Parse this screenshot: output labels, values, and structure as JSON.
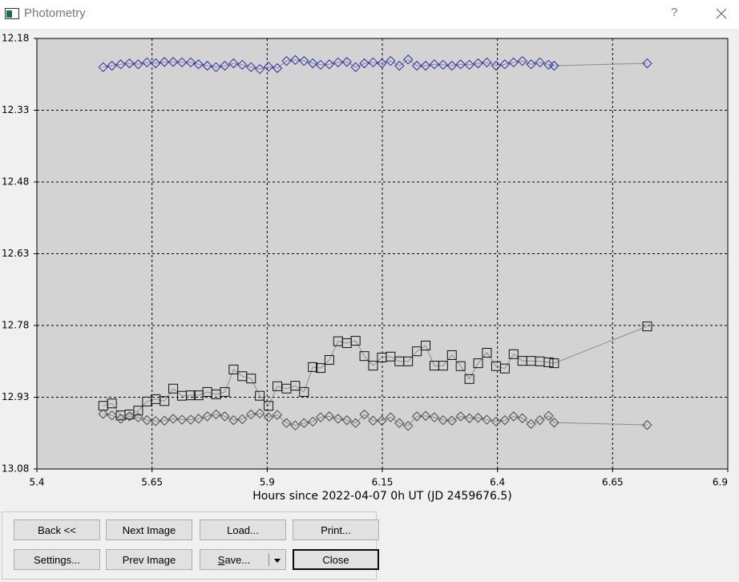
{
  "window": {
    "title": "Photometry",
    "help": "?"
  },
  "buttons": [
    [
      "Back <<",
      "Next Image",
      "Load...",
      "Print..."
    ],
    [
      "Settings...",
      "Prev Image",
      "Save...",
      "Close"
    ]
  ],
  "chart_data": {
    "type": "line",
    "x_label": "Hours since 2022-04-07 0h UT (JD 2459676.5)",
    "xlim": [
      5.4,
      6.9
    ],
    "xticks": [
      5.4,
      5.65,
      5.9,
      6.15,
      6.4,
      6.65,
      6.9
    ],
    "ylim": [
      12.18,
      13.08
    ],
    "yticks": [
      12.18,
      12.33,
      12.48,
      12.63,
      12.78,
      12.93,
      13.08
    ],
    "y_inverted": true,
    "grid": true,
    "x": [
      5.544,
      5.563,
      5.582,
      5.601,
      5.62,
      5.639,
      5.658,
      5.677,
      5.696,
      5.715,
      5.734,
      5.751,
      5.77,
      5.789,
      5.808,
      5.827,
      5.846,
      5.865,
      5.884,
      5.903,
      5.922,
      5.942,
      5.961,
      5.98,
      5.999,
      6.016,
      6.035,
      6.054,
      6.073,
      6.092,
      6.111,
      6.13,
      6.149,
      6.168,
      6.187,
      6.206,
      6.225,
      6.244,
      6.263,
      6.282,
      6.301,
      6.32,
      6.339,
      6.358,
      6.377,
      6.397,
      6.416,
      6.435,
      6.454,
      6.473,
      6.492,
      6.511,
      6.523,
      6.725
    ],
    "series": [
      {
        "color": "#2b2ba8",
        "marker": "diamond",
        "values": [
          12.24,
          12.237,
          12.234,
          12.232,
          12.234,
          12.23,
          12.232,
          12.229,
          12.229,
          12.23,
          12.23,
          12.234,
          12.237,
          12.24,
          12.237,
          12.232,
          12.235,
          12.24,
          12.244,
          12.239,
          12.242,
          12.227,
          12.225,
          12.227,
          12.232,
          12.235,
          12.234,
          12.23,
          12.229,
          12.24,
          12.232,
          12.23,
          12.232,
          12.227,
          12.237,
          12.224,
          12.237,
          12.237,
          12.234,
          12.235,
          12.237,
          12.234,
          12.235,
          12.232,
          12.23,
          12.237,
          12.234,
          12.23,
          12.227,
          12.234,
          12.23,
          12.235,
          12.237,
          12.232
        ]
      },
      {
        "color": "#111111",
        "marker": "square",
        "values": [
          12.948,
          12.943,
          12.968,
          12.966,
          12.958,
          12.939,
          12.934,
          12.938,
          12.912,
          12.927,
          12.926,
          12.926,
          12.919,
          12.924,
          12.919,
          12.872,
          12.886,
          12.891,
          12.927,
          12.948,
          12.907,
          12.912,
          12.906,
          12.919,
          12.867,
          12.869,
          12.852,
          12.813,
          12.817,
          12.812,
          12.844,
          12.864,
          12.847,
          12.845,
          12.855,
          12.855,
          12.834,
          12.822,
          12.864,
          12.864,
          12.842,
          12.865,
          12.892,
          12.859,
          12.837,
          12.865,
          12.87,
          12.84,
          12.854,
          12.854,
          12.855,
          12.857,
          12.859,
          12.782
        ]
      },
      {
        "color": "#4a4a4a",
        "marker": "diamond",
        "values": [
          12.965,
          12.968,
          12.975,
          12.97,
          12.972,
          12.978,
          12.98,
          12.979,
          12.975,
          12.977,
          12.977,
          12.975,
          12.97,
          12.966,
          12.97,
          12.978,
          12.976,
          12.966,
          12.964,
          12.972,
          12.967,
          12.984,
          12.989,
          12.984,
          12.981,
          12.972,
          12.97,
          12.975,
          12.978,
          12.984,
          12.966,
          12.979,
          12.979,
          12.972,
          12.984,
          12.99,
          12.97,
          12.969,
          12.972,
          12.978,
          12.979,
          12.97,
          12.974,
          12.973,
          12.977,
          12.981,
          12.978,
          12.97,
          12.974,
          12.986,
          12.978,
          12.969,
          12.983,
          12.988
        ]
      }
    ]
  }
}
